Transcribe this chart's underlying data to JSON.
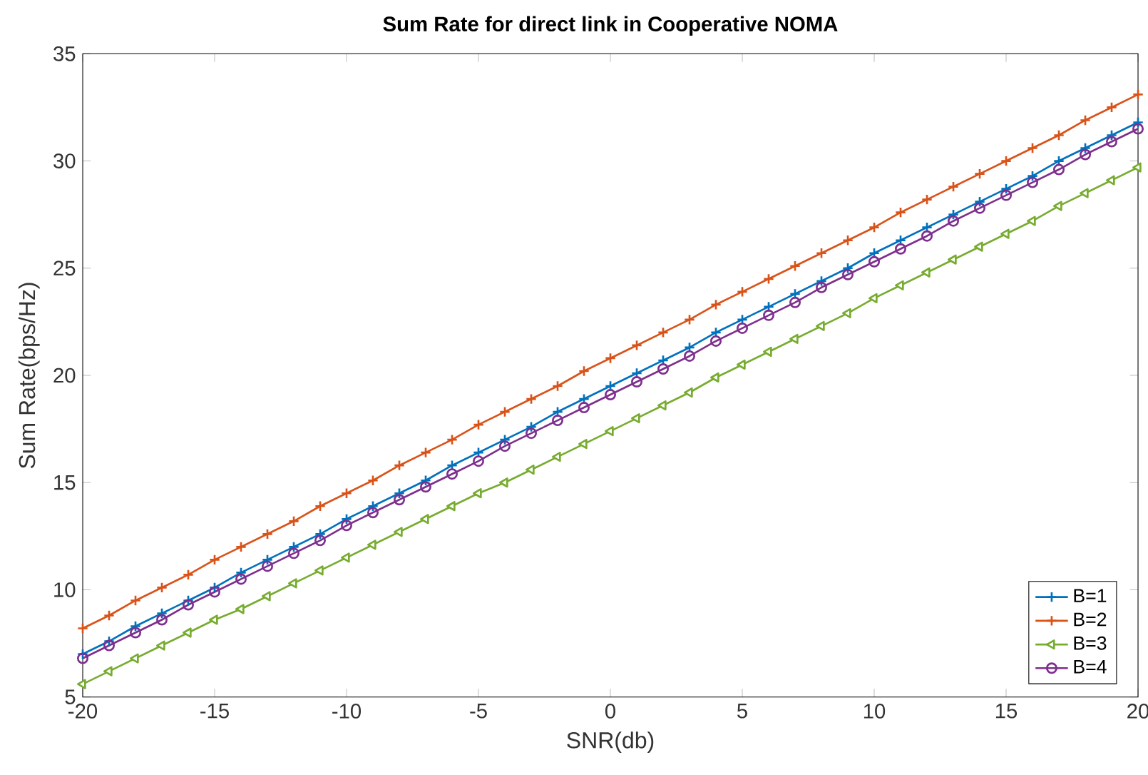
{
  "chart_data": {
    "type": "line",
    "title": "Sum Rate for direct link in Cooperative NOMA",
    "xlabel": "SNR(db)",
    "ylabel": "Sum Rate(bps/Hz)",
    "x": [
      -20,
      -19,
      -18,
      -17,
      -16,
      -15,
      -14,
      -13,
      -12,
      -11,
      -10,
      -9,
      -8,
      -7,
      -6,
      -5,
      -4,
      -3,
      -2,
      -1,
      0,
      1,
      2,
      3,
      4,
      5,
      6,
      7,
      8,
      9,
      10,
      11,
      12,
      13,
      14,
      15,
      16,
      17,
      18,
      19,
      20
    ],
    "xlim": [
      -20,
      20
    ],
    "ylim": [
      5,
      35
    ],
    "xticks": [
      -20,
      -15,
      -10,
      -5,
      0,
      5,
      10,
      15,
      20
    ],
    "yticks": [
      5,
      10,
      15,
      20,
      25,
      30,
      35
    ],
    "grid": false,
    "legend": "bottom right",
    "line_style": "solid",
    "series": [
      {
        "name": "B=1",
        "color": "#0072bd",
        "marker": "cross",
        "values": [
          7.0,
          7.6,
          8.3,
          8.9,
          9.5,
          10.1,
          10.8,
          11.4,
          12.0,
          12.6,
          13.3,
          13.9,
          14.5,
          15.1,
          15.8,
          16.4,
          17.0,
          17.6,
          18.3,
          18.9,
          19.5,
          20.1,
          20.7,
          21.3,
          22.0,
          22.6,
          23.2,
          23.8,
          24.4,
          25.0,
          25.7,
          26.3,
          26.9,
          27.5,
          28.1,
          28.7,
          29.3,
          30.0,
          30.6,
          31.2,
          31.8
        ]
      },
      {
        "name": "B=2",
        "color": "#d95319",
        "marker": "cross",
        "values": [
          8.2,
          8.8,
          9.5,
          10.1,
          10.7,
          11.4,
          12.0,
          12.6,
          13.2,
          13.9,
          14.5,
          15.1,
          15.8,
          16.4,
          17.0,
          17.7,
          18.3,
          18.9,
          19.5,
          20.2,
          20.8,
          21.4,
          22.0,
          22.6,
          23.3,
          23.9,
          24.5,
          25.1,
          25.7,
          26.3,
          26.9,
          27.6,
          28.2,
          28.8,
          29.4,
          30.0,
          30.6,
          31.2,
          31.9,
          32.5,
          33.1
        ]
      },
      {
        "name": "B=3",
        "color": "#77ac30",
        "marker": "triangle",
        "values": [
          5.6,
          6.2,
          6.8,
          7.4,
          8.0,
          8.6,
          9.1,
          9.7,
          10.3,
          10.9,
          11.5,
          12.1,
          12.7,
          13.3,
          13.9,
          14.5,
          15.0,
          15.6,
          16.2,
          16.8,
          17.4,
          18.0,
          18.6,
          19.2,
          19.9,
          20.5,
          21.1,
          21.7,
          22.3,
          22.9,
          23.6,
          24.2,
          24.8,
          25.4,
          26.0,
          26.6,
          27.2,
          27.9,
          28.5,
          29.1,
          29.7
        ]
      },
      {
        "name": "B=4",
        "color": "#7e2f8e",
        "marker": "circle",
        "values": [
          6.8,
          7.4,
          8.0,
          8.6,
          9.3,
          9.9,
          10.5,
          11.1,
          11.7,
          12.3,
          13.0,
          13.6,
          14.2,
          14.8,
          15.4,
          16.0,
          16.7,
          17.3,
          17.9,
          18.5,
          19.1,
          19.7,
          20.3,
          20.9,
          21.6,
          22.2,
          22.8,
          23.4,
          24.1,
          24.7,
          25.3,
          25.9,
          26.5,
          27.2,
          27.8,
          28.4,
          29.0,
          29.6,
          30.3,
          30.9,
          31.5
        ]
      }
    ]
  }
}
